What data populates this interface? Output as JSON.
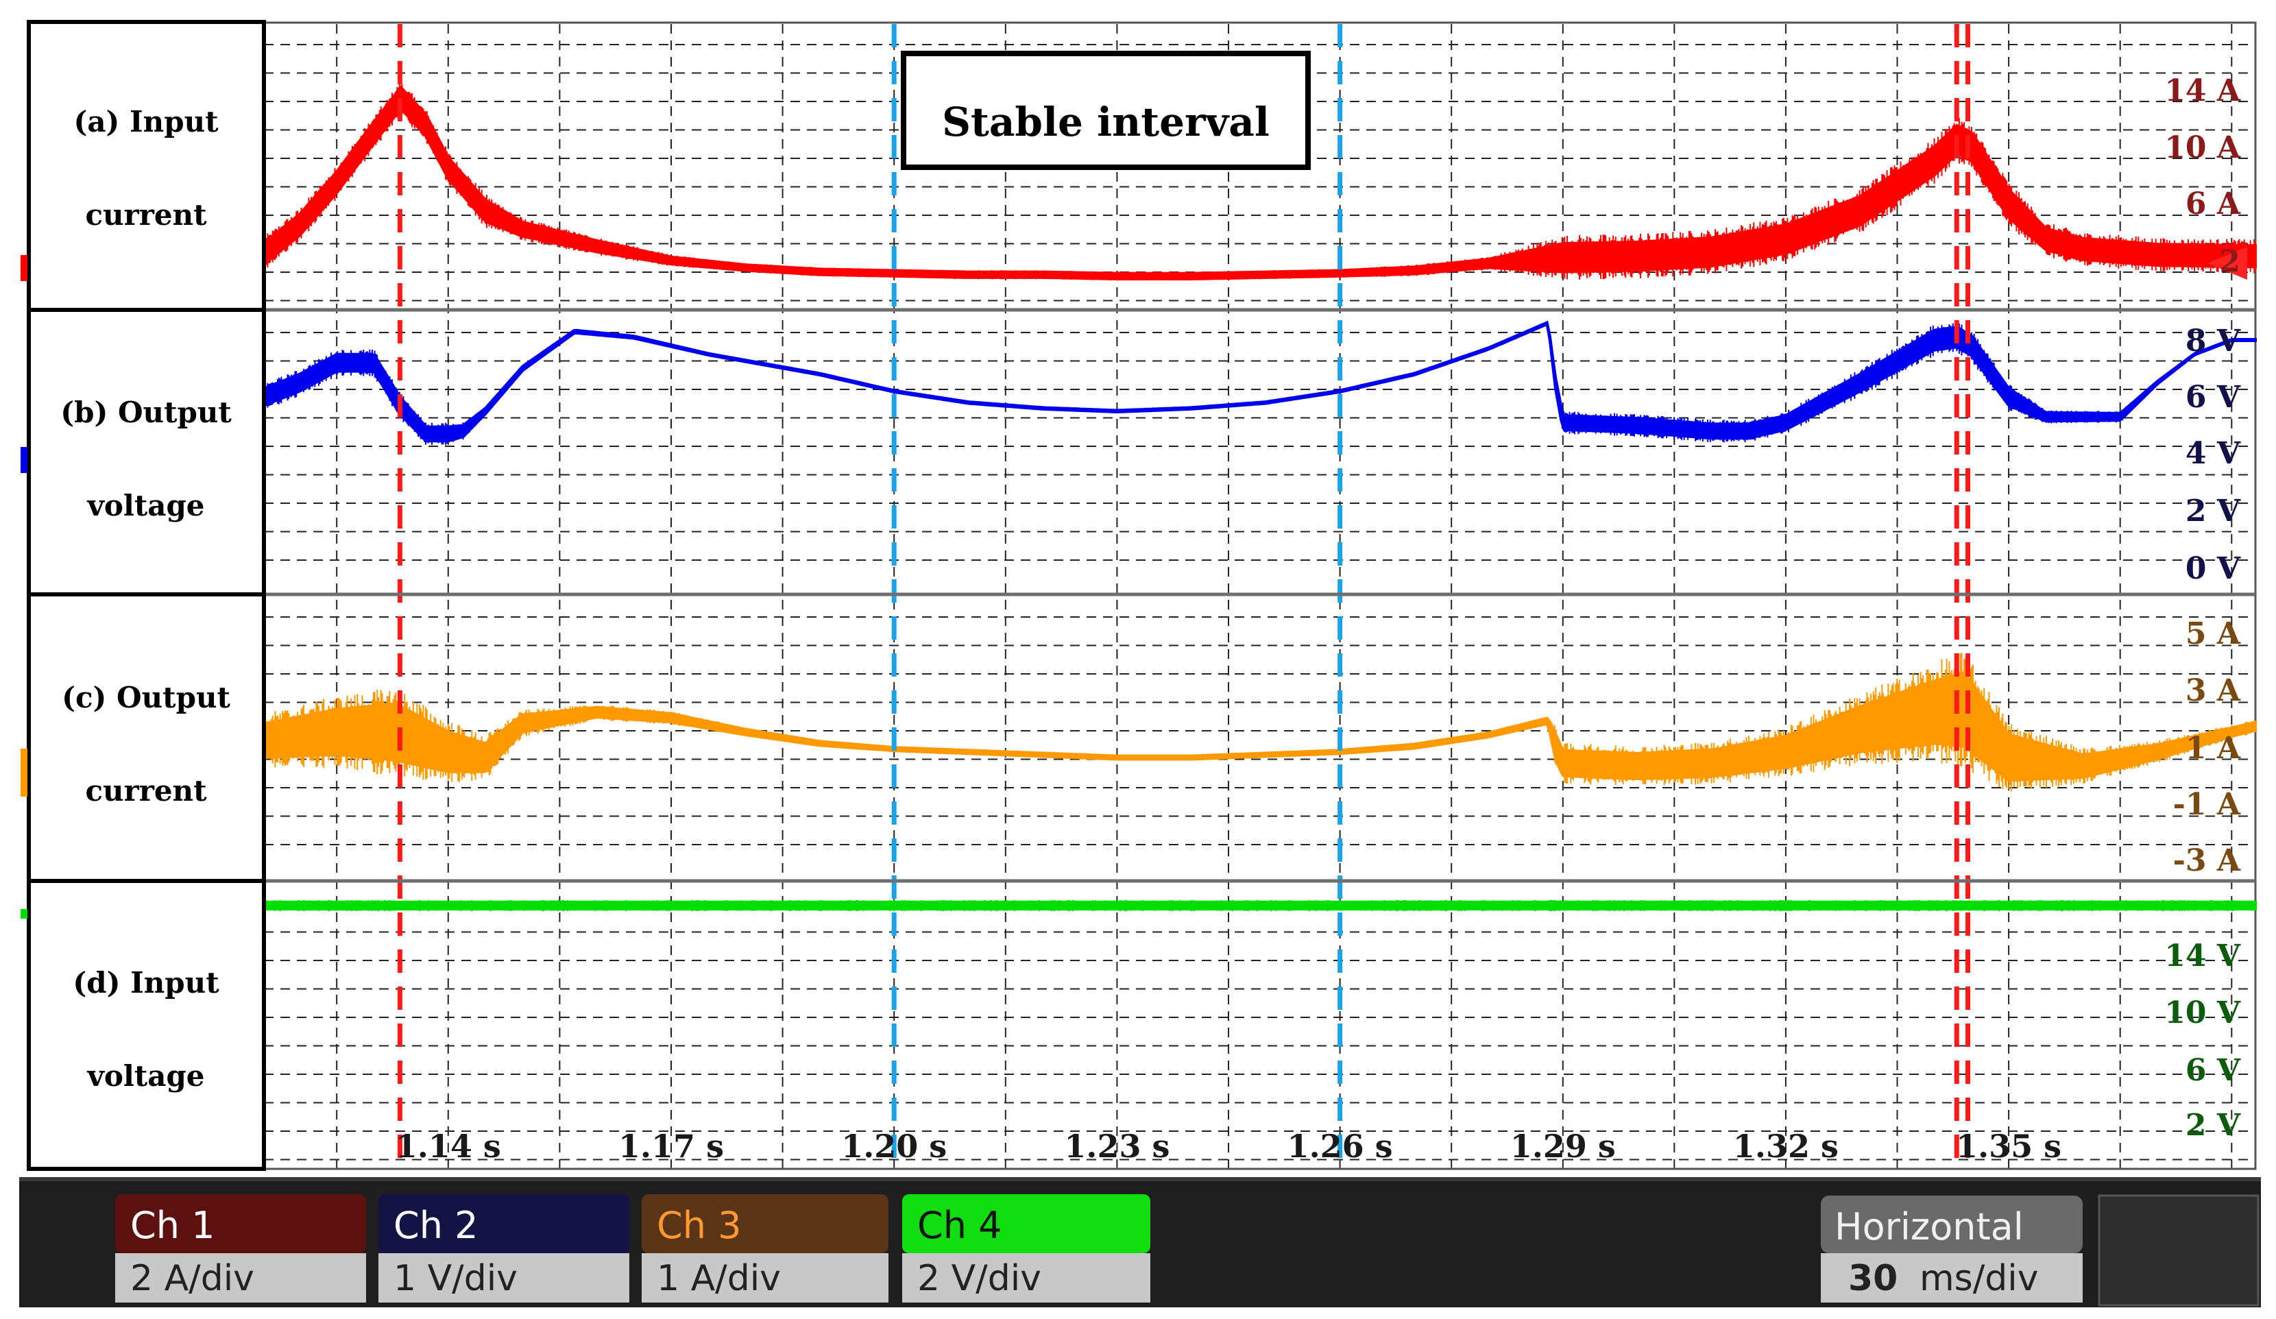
{
  "chart_data": {
    "type": "line",
    "title": "",
    "x_unit": "s",
    "x_ticks": [
      "1.14 s",
      "1.17 s",
      "1.20 s",
      "1.23 s",
      "1.26 s",
      "1.29 s",
      "1.32 s",
      "1.35 s"
    ],
    "xlim": [
      1.1152,
      1.3832
    ],
    "annotation": {
      "text": "Stable interval",
      "x_start": 1.2,
      "x_end": 1.26
    },
    "markers": {
      "red_dashed_x": [
        1.1335,
        1.343,
        1.3445
      ],
      "blue_dashed_x": [
        1.2,
        1.26
      ]
    },
    "panels": [
      {
        "label": [
          "(a) Input",
          "current"
        ],
        "unit": "A",
        "ticks": [
          "14 A",
          "10 A",
          "6 A",
          "2"
        ],
        "tick_color": "#8b1a1a",
        "series": {
          "color": "#ff0000",
          "x": [
            1.1152,
            1.12,
            1.125,
            1.13,
            1.133,
            1.1335,
            1.137,
            1.14,
            1.145,
            1.15,
            1.16,
            1.17,
            1.18,
            1.19,
            1.2,
            1.21,
            1.22,
            1.23,
            1.24,
            1.25,
            1.26,
            1.27,
            1.28,
            1.29,
            1.3,
            1.31,
            1.32,
            1.33,
            1.34,
            1.343,
            1.345,
            1.35,
            1.355,
            1.36,
            1.37,
            1.3832
          ],
          "y": [
            2.5,
            4.5,
            7.5,
            11.0,
            13.0,
            13.5,
            11.5,
            8.5,
            5.5,
            4.2,
            3.0,
            2.0,
            1.5,
            1.2,
            1.1,
            1.0,
            1.0,
            0.9,
            0.9,
            1.0,
            1.1,
            1.3,
            1.8,
            2.2,
            2.3,
            2.6,
            3.5,
            5.5,
            9.0,
            10.5,
            10.0,
            6.0,
            3.5,
            2.8,
            2.4,
            2.3
          ],
          "noise": [
            1.5,
            1.5,
            1.5,
            1.5,
            1.5,
            1.5,
            1.5,
            1.5,
            1.5,
            1.0,
            0.8,
            0.5,
            0.4,
            0.4,
            0.4,
            0.4,
            0.4,
            0.4,
            0.4,
            0.4,
            0.4,
            0.5,
            0.6,
            2.0,
            2.0,
            2.0,
            2.0,
            2.0,
            2.0,
            2.0,
            2.0,
            2.0,
            1.5,
            1.5,
            1.5,
            1.5
          ]
        }
      },
      {
        "label": [
          "(b) Output",
          "voltage"
        ],
        "unit": "V",
        "ticks": [
          "8 V",
          "6 V",
          "4 V",
          "2 V",
          "0 V"
        ],
        "tick_color": "#12124a",
        "series": {
          "color": "#0000ee",
          "x": [
            1.1152,
            1.12,
            1.125,
            1.13,
            1.1335,
            1.137,
            1.14,
            1.142,
            1.145,
            1.15,
            1.157,
            1.165,
            1.175,
            1.19,
            1.2,
            1.21,
            1.22,
            1.23,
            1.24,
            1.25,
            1.26,
            1.27,
            1.28,
            1.288,
            1.289,
            1.29,
            1.3,
            1.31,
            1.315,
            1.32,
            1.33,
            1.34,
            1.343,
            1.345,
            1.35,
            1.355,
            1.365,
            1.37,
            1.375,
            1.38,
            1.3832
          ],
          "y": [
            6.0,
            6.5,
            7.2,
            7.2,
            5.7,
            4.7,
            4.7,
            4.8,
            5.5,
            7.0,
            8.3,
            8.1,
            7.5,
            6.8,
            6.2,
            5.8,
            5.6,
            5.5,
            5.6,
            5.8,
            6.2,
            6.8,
            7.7,
            8.6,
            6.5,
            5.1,
            5.0,
            4.8,
            4.8,
            5.1,
            6.5,
            8.0,
            8.1,
            7.8,
            6.0,
            5.3,
            5.3,
            6.5,
            7.5,
            8.0,
            8.0
          ],
          "noise": [
            0.6,
            0.6,
            0.6,
            0.6,
            0.6,
            0.5,
            0.5,
            0.4,
            0.2,
            0.15,
            0.1,
            0.08,
            0.06,
            0.06,
            0.06,
            0.06,
            0.06,
            0.06,
            0.06,
            0.06,
            0.06,
            0.06,
            0.06,
            0.06,
            0.4,
            0.5,
            0.5,
            0.5,
            0.5,
            0.5,
            0.6,
            0.7,
            0.7,
            0.7,
            0.6,
            0.3,
            0.25,
            0.1,
            0.05,
            0.05,
            0.05
          ]
        }
      },
      {
        "label": [
          "(c) Output",
          "current"
        ],
        "unit": "A",
        "ticks": [
          "5 A",
          "3 A",
          "1 A",
          "-1 A",
          "-3 A"
        ],
        "tick_color": "#7a4a10",
        "series": {
          "color": "#ff9900",
          "x": [
            1.1152,
            1.125,
            1.133,
            1.14,
            1.145,
            1.15,
            1.16,
            1.17,
            1.18,
            1.19,
            1.2,
            1.21,
            1.22,
            1.23,
            1.24,
            1.25,
            1.26,
            1.27,
            1.28,
            1.288,
            1.289,
            1.29,
            1.3,
            1.31,
            1.32,
            1.33,
            1.34,
            1.344,
            1.35,
            1.36,
            1.37,
            1.38,
            1.3832
          ],
          "y": [
            1.2,
            1.5,
            1.5,
            0.8,
            0.6,
            1.8,
            2.2,
            2.0,
            1.5,
            1.1,
            0.9,
            0.8,
            0.7,
            0.6,
            0.6,
            0.7,
            0.8,
            1.0,
            1.4,
            1.9,
            1.0,
            0.4,
            0.3,
            0.4,
            0.8,
            1.6,
            2.2,
            2.3,
            0.6,
            0.3,
            0.8,
            1.5,
            1.7
          ],
          "noise": [
            1.2,
            1.6,
            2.0,
            1.4,
            1.0,
            0.6,
            0.35,
            0.3,
            0.2,
            0.15,
            0.12,
            0.12,
            0.12,
            0.12,
            0.12,
            0.12,
            0.12,
            0.15,
            0.15,
            0.2,
            0.9,
            0.9,
            0.9,
            0.95,
            1.1,
            1.6,
            2.2,
            2.6,
            1.6,
            0.8,
            0.5,
            0.3,
            0.3
          ]
        }
      },
      {
        "label": [
          "(d) Input",
          "voltage"
        ],
        "unit": "V",
        "ticks": [
          "14 V",
          "10 V",
          "6 V",
          "2 V"
        ],
        "tick_color": "#0d5c0d",
        "series": {
          "color": "#00dd00",
          "x": [
            1.1152,
            1.3832
          ],
          "y": [
            17.5,
            17.5
          ],
          "noise": [
            0.5,
            0.5
          ]
        }
      }
    ]
  },
  "footer": {
    "channels": [
      {
        "name": "Ch 1",
        "scale": "2 A/div",
        "header_bg": "#5c1010",
        "header_fg": "#ffffff"
      },
      {
        "name": "Ch 2",
        "scale": "1 V/div",
        "header_bg": "#131346",
        "header_fg": "#ffffff"
      },
      {
        "name": "Ch 3",
        "scale": "1 A/div",
        "header_bg": "#5a3416",
        "header_fg": "#ff9a30"
      },
      {
        "name": "Ch 4",
        "scale": "2 V/div",
        "header_bg": "#11dd11",
        "header_fg": "#111111"
      }
    ],
    "horizontal": {
      "name": "Horizontal",
      "scale_value": "30",
      "scale_unit": "ms/div"
    }
  }
}
